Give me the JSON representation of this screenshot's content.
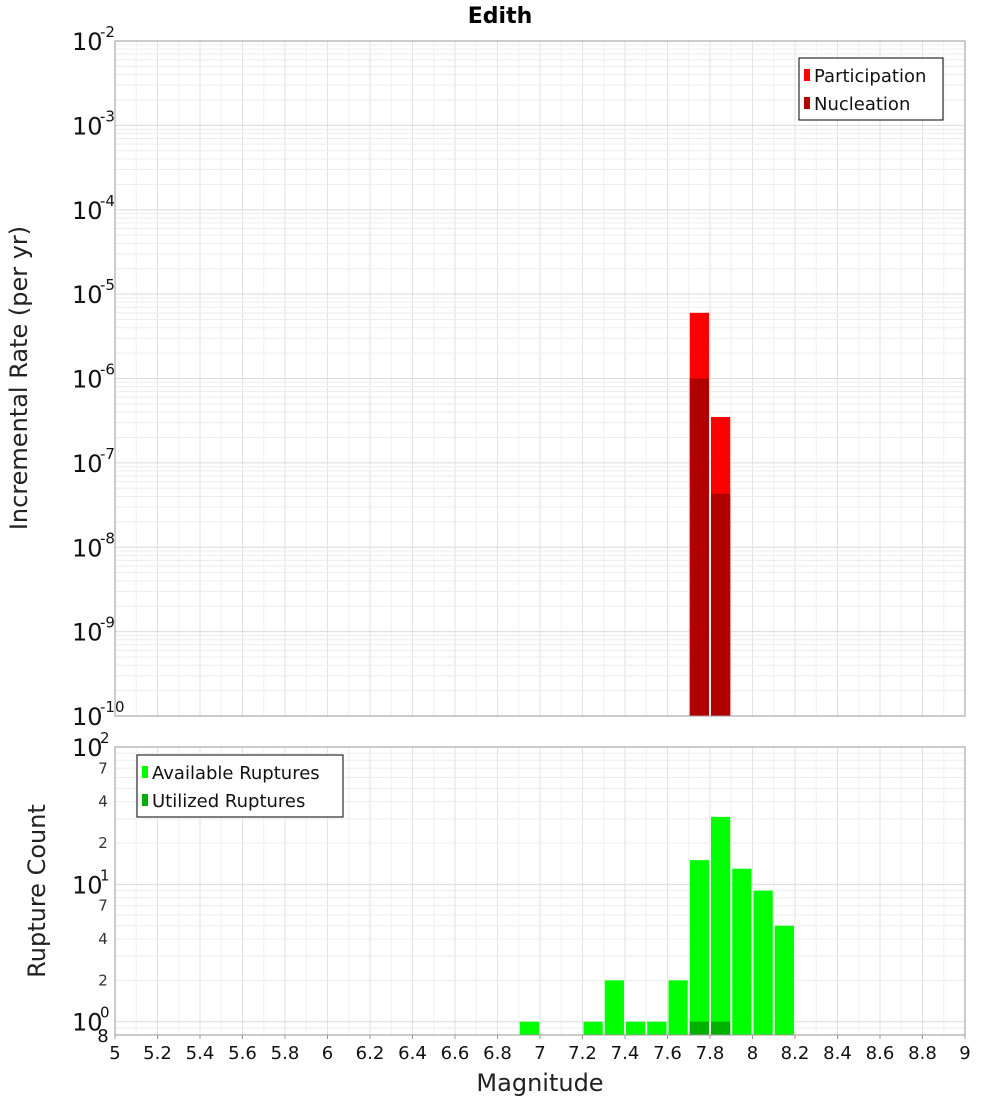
{
  "chart_data": [
    {
      "type": "bar",
      "title": "Edith",
      "xlabel": "",
      "ylabel": "Incremental Rate (per yr)",
      "yscale": "log",
      "ylim": [
        1e-10,
        0.01
      ],
      "xlim": [
        5,
        9
      ],
      "y_exponents": [
        -10,
        -9,
        -8,
        -7,
        -6,
        -5,
        -4,
        -3,
        -2
      ],
      "grid": true,
      "legend_position": "top-right",
      "legend": [
        {
          "name": "Participation",
          "color": "#ff0000"
        },
        {
          "name": "Nucleation",
          "color": "#b00000"
        }
      ],
      "series": [
        {
          "name": "Participation",
          "color": "#ff0000",
          "x": [
            7.75,
            7.85
          ],
          "values": [
            6e-06,
            3.5e-07
          ]
        },
        {
          "name": "Nucleation",
          "color": "#b00000",
          "x": [
            7.75,
            7.85
          ],
          "values": [
            1e-06,
            4.3e-08
          ]
        }
      ]
    },
    {
      "type": "bar",
      "title": "",
      "xlabel": "Magnitude",
      "ylabel": "Rupture Count",
      "yscale": "log",
      "ylim": [
        0.8,
        100
      ],
      "xlim": [
        5,
        9
      ],
      "y_exponents": [
        0,
        1,
        2
      ],
      "y_minor_labels": [
        {
          "value": 0.8,
          "label": "8"
        },
        {
          "value": 2,
          "label": "2"
        },
        {
          "value": 4,
          "label": "4"
        },
        {
          "value": 7,
          "label": "7"
        },
        {
          "value": 20,
          "label": "2"
        },
        {
          "value": 40,
          "label": "4"
        },
        {
          "value": 70,
          "label": "7"
        }
      ],
      "x_ticks": [
        "5",
        "5.2",
        "5.4",
        "5.6",
        "5.8",
        "6",
        "6.2",
        "6.4",
        "6.6",
        "6.8",
        "7",
        "7.2",
        "7.4",
        "7.6",
        "7.8",
        "8",
        "8.2",
        "8.4",
        "8.6",
        "8.8",
        "9"
      ],
      "grid": true,
      "legend_position": "top-left",
      "legend": [
        {
          "name": "Available Ruptures",
          "color": "#00ff00"
        },
        {
          "name": "Utilized Ruptures",
          "color": "#00b000"
        }
      ],
      "series": [
        {
          "name": "Available Ruptures",
          "color": "#00ff00",
          "x": [
            6.95,
            7.25,
            7.35,
            7.45,
            7.55,
            7.65,
            7.75,
            7.85,
            7.95,
            8.05,
            8.15
          ],
          "values": [
            1,
            1,
            2,
            1,
            1,
            2,
            15,
            31,
            13,
            9,
            5
          ]
        },
        {
          "name": "Utilized Ruptures",
          "color": "#00b000",
          "x": [
            7.75,
            7.85
          ],
          "values": [
            1,
            1
          ]
        }
      ]
    }
  ]
}
